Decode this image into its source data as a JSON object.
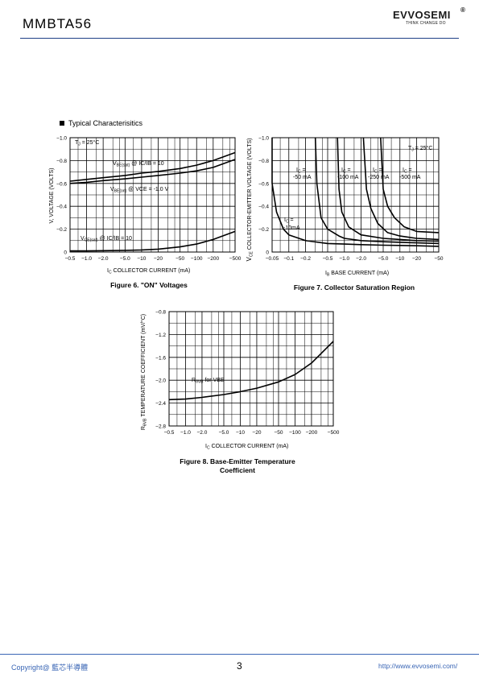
{
  "header": {
    "part_number": "MMBTA56",
    "logo_text": "EVVOSEMI",
    "logo_reg": "®",
    "logo_tagline": "THINK CHANGE DO"
  },
  "section_title": "Typical Characterisitics",
  "chart_data": [
    {
      "type": "line",
      "caption": "Figure 6. \"ON\" Voltages",
      "ylabel": "V, VOLTAGE (VOLTS)",
      "xlabel_sub": "C",
      "xlabel": "COLLECTOR CURRENT (mA)",
      "x_log_scale": true,
      "x_ticks": [
        "-0.5",
        "-1.0",
        "-2.0",
        "-5.0",
        "-10",
        "-20",
        "-50",
        "-100",
        "-200",
        "-500"
      ],
      "y_ticks": [
        "-1.0",
        "-0.8",
        "-0.6",
        "-0.4",
        "-0.2",
        "0"
      ],
      "annotations": [
        "TJ = 25°C",
        "VBE(sat) @ IC/IB = 10",
        "VBE(on) @ VCE = -1.0 V",
        "VCE(sat) @ IC/IB = 10"
      ],
      "series": [
        {
          "x": [
            -0.5,
            -1,
            -2,
            -5,
            -10,
            -20,
            -50,
            -100,
            -200,
            -500
          ],
          "y": [
            -0.62,
            -0.635,
            -0.65,
            -0.67,
            -0.69,
            -0.705,
            -0.73,
            -0.76,
            -0.8,
            -0.87
          ]
        },
        {
          "x": [
            -0.5,
            -1,
            -2,
            -5,
            -10,
            -20,
            -50,
            -100,
            -200,
            -500
          ],
          "y": [
            -0.6,
            -0.61,
            -0.625,
            -0.64,
            -0.655,
            -0.67,
            -0.69,
            -0.71,
            -0.74,
            -0.81
          ]
        },
        {
          "x": [
            -0.5,
            -1,
            -2,
            -5,
            -10,
            -20,
            -50,
            -100,
            -200,
            -500
          ],
          "y": [
            -0.01,
            -0.01,
            -0.012,
            -0.015,
            -0.018,
            -0.025,
            -0.045,
            -0.07,
            -0.11,
            -0.18
          ]
        }
      ],
      "ylim": [
        0,
        -1.0
      ],
      "grid": true
    },
    {
      "type": "line",
      "caption": "Figure 7. Collector Saturation Region",
      "ylabel_sub": "CE",
      "ylabel": "COLLECTOR-EMITTER VOLTAGE (VOLTS)",
      "xlabel_sub": "B",
      "xlabel": "BASE CURRENT (mA)",
      "x_log_scale": true,
      "x_ticks": [
        "-0.05",
        "-0.1",
        "-0.2",
        "-0.5",
        "-1.0",
        "-2.0",
        "-5.0",
        "-10",
        "-20",
        "-50"
      ],
      "y_ticks": [
        "-1.0",
        "-0.8",
        "-0.6",
        "-0.4",
        "-0.2",
        "0"
      ],
      "annotations": [
        "TJ = 25°C",
        "IC = -10mA",
        "IC = -50 mA",
        "IC = -100 mA",
        "IC = -250 mA",
        "IC = -500 mA"
      ],
      "series": [
        {
          "x": [
            -0.045,
            -0.05,
            -0.06,
            -0.08,
            -0.1,
            -0.2,
            -0.5,
            -1,
            -2,
            -5,
            -10,
            -20,
            -50
          ],
          "y": [
            -1.0,
            -0.6,
            -0.35,
            -0.2,
            -0.15,
            -0.1,
            -0.075,
            -0.07,
            -0.065,
            -0.06,
            -0.058,
            -0.055,
            -0.05
          ]
        },
        {
          "x": [
            -0.3,
            -0.32,
            -0.38,
            -0.5,
            -0.8,
            -1,
            -2,
            -5,
            -10,
            -20,
            -50
          ],
          "y": [
            -1.0,
            -0.6,
            -0.3,
            -0.2,
            -0.14,
            -0.12,
            -0.1,
            -0.09,
            -0.085,
            -0.08,
            -0.075
          ]
        },
        {
          "x": [
            -0.75,
            -0.8,
            -0.9,
            -1.2,
            -2,
            -5,
            -10,
            -20,
            -50
          ],
          "y": [
            -1.0,
            -0.55,
            -0.35,
            -0.22,
            -0.15,
            -0.12,
            -0.11,
            -0.1,
            -0.095
          ]
        },
        {
          "x": [
            -2.2,
            -2.5,
            -3,
            -4,
            -6,
            -10,
            -20,
            -50
          ],
          "y": [
            -1.0,
            -0.55,
            -0.38,
            -0.25,
            -0.17,
            -0.14,
            -0.12,
            -0.11
          ]
        },
        {
          "x": [
            -4.5,
            -5,
            -6,
            -8,
            -12,
            -20,
            -50
          ],
          "y": [
            -1.0,
            -0.55,
            -0.4,
            -0.3,
            -0.22,
            -0.18,
            -0.17
          ]
        }
      ],
      "ylim": [
        0,
        -1.0
      ],
      "grid": true
    },
    {
      "type": "line",
      "caption": "Figure 8. Base-Emitter Temperature Coefficient",
      "ylabel_sub": "θVB",
      "ylabel": "TEMPERATURE COEFFICIENT (mV/°C)",
      "ylabel_prefix": "R",
      "xlabel_sub": "C",
      "xlabel": "COLLECTOR CURRENT (mA)",
      "x_log_scale": true,
      "x_ticks": [
        "-0.5",
        "-1.0",
        "-2.0",
        "-5.0",
        "-10",
        "-20",
        "-50",
        "-100",
        "-200",
        "-500"
      ],
      "y_ticks": [
        "-0.8",
        "-1.2",
        "-1.6",
        "-2.0",
        "-2.4",
        "-2.8"
      ],
      "annotations": [
        "RθVB for VBE"
      ],
      "series": [
        {
          "x": [
            -0.5,
            -1,
            -2,
            -5,
            -10,
            -20,
            -50,
            -100,
            -200,
            -500
          ],
          "y": [
            -2.34,
            -2.33,
            -2.3,
            -2.25,
            -2.2,
            -2.14,
            -2.03,
            -1.9,
            -1.7,
            -1.32
          ]
        }
      ],
      "ylim": [
        -2.8,
        -0.8
      ],
      "grid": true
    }
  ],
  "figure6": {
    "axis_i": "I",
    "ann_tj": "T",
    "ann_tj_sub": "J",
    "ann_tj_rest": " = 25°C",
    "ann_vbesat": "V",
    "ann_vbesat_sub": "BE(sat)",
    "ann_vbesat_rest": " @ IC/IB = 10",
    "ann_vbeon": "V",
    "ann_vbeon_sub": "BE(on)",
    "ann_vbeon_rest": " @ VCE = -1.0 V",
    "ann_vcesat": "V",
    "ann_vcesat_sub": "CE(sat)",
    "ann_vcesat_rest": " @ IC/IB = 10"
  },
  "figure7": {
    "axis_v": "V",
    "axis_i": "I",
    "ann_tj": "T",
    "ann_tj_sub": "J",
    "ann_tj_rest": " = 25°C",
    "ann_ic": "I",
    "ann_ic_sub": "C",
    "ann_ic_eq": " =",
    "ic_values": [
      "-10mA",
      "-50 mA",
      "-100 mA",
      "-250 mA",
      "-500 mA"
    ]
  },
  "figure8": {
    "axis_i": "I",
    "ann": "R",
    "ann_sub": "θVB",
    "ann_rest": " for VBE"
  },
  "footer": {
    "copyright": "Copyright@ 藍芯半導體",
    "page": "3",
    "url": "http://www.evvosemi.com/"
  }
}
